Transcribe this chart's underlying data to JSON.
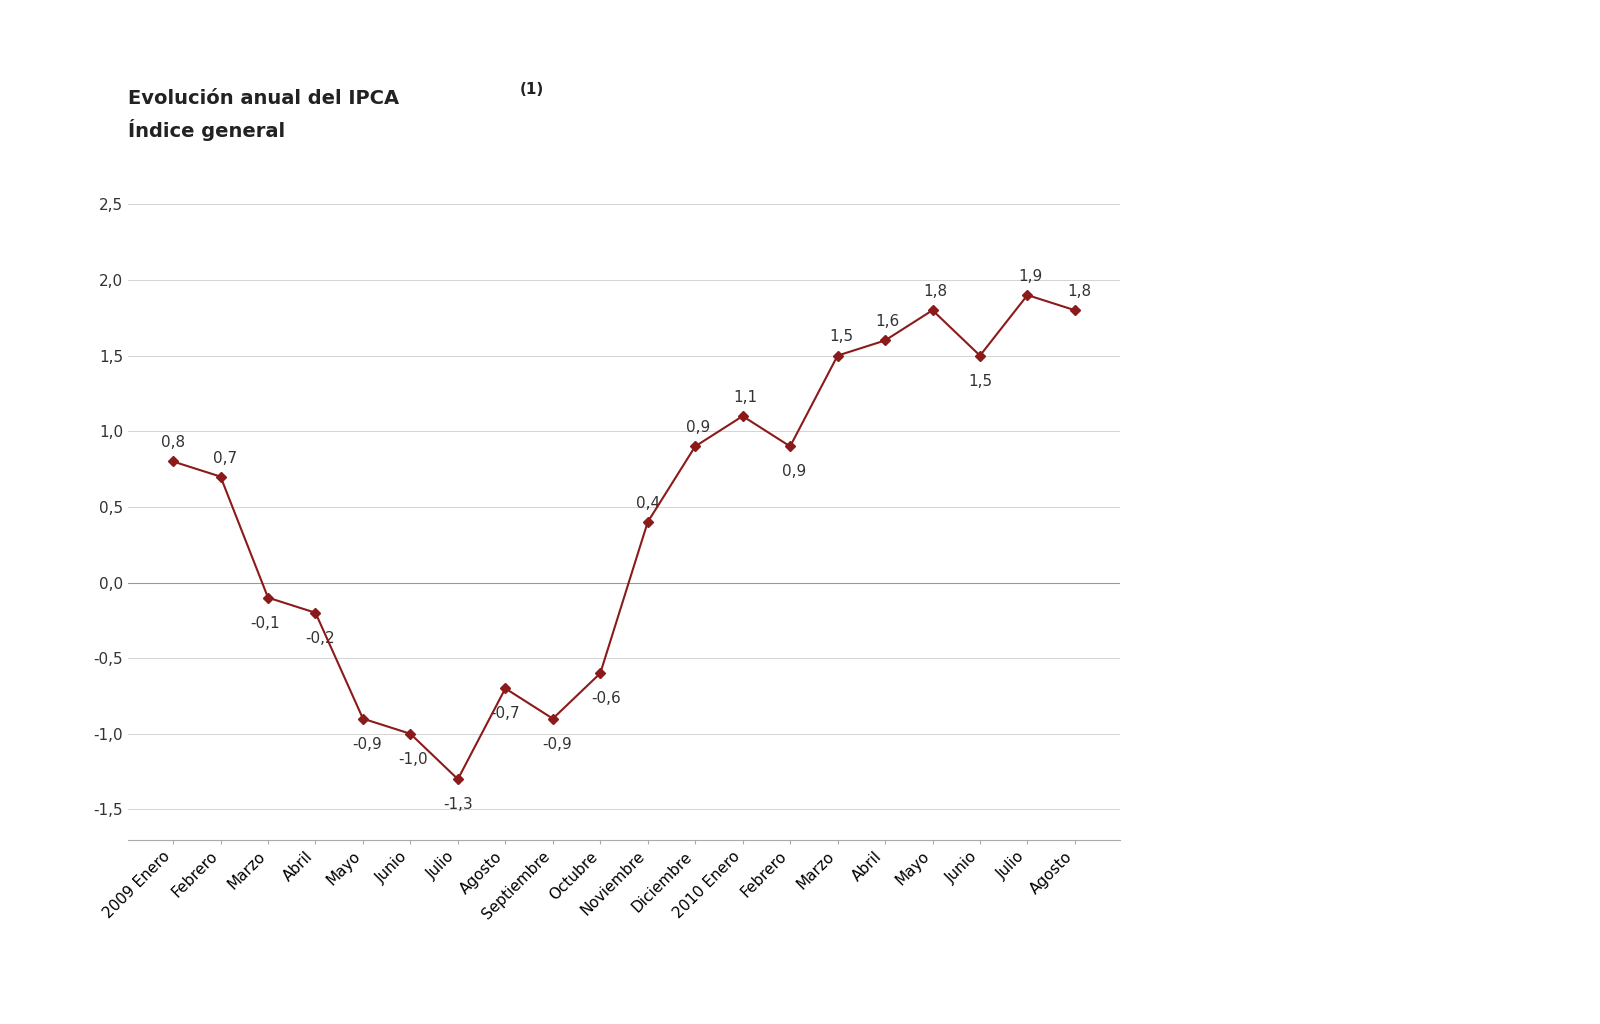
{
  "title_line1": "Evolución anual del IPCA ",
  "title_superscript": "(1)",
  "title_line2": "Índice general",
  "labels": [
    "2009 Enero",
    "Febrero",
    "Marzo",
    "Abril",
    "Mayo",
    "Junio",
    "Julio",
    "Agosto",
    "Septiembre",
    "Octubre",
    "Noviembre",
    "Diciembre",
    "2010 Enero",
    "Febrero",
    "Marzo",
    "Abril",
    "Mayo",
    "Junio",
    "Julio",
    "Agosto"
  ],
  "values": [
    0.8,
    0.7,
    -0.1,
    -0.2,
    -0.9,
    -1.0,
    -1.3,
    -0.7,
    -0.9,
    -0.6,
    0.4,
    0.9,
    1.1,
    0.9,
    1.5,
    1.6,
    1.8,
    1.5,
    1.9,
    1.8
  ],
  "ylim": [
    -1.7,
    2.7
  ],
  "yticks": [
    -1.5,
    -1.0,
    -0.5,
    0.0,
    0.5,
    1.0,
    1.5,
    2.0,
    2.5
  ],
  "line_color": "#8B1A1A",
  "marker_color": "#8B1A1A",
  "background_color": "#ffffff",
  "title_fontsize": 14,
  "tick_fontsize": 11,
  "annotation_fontsize": 11
}
